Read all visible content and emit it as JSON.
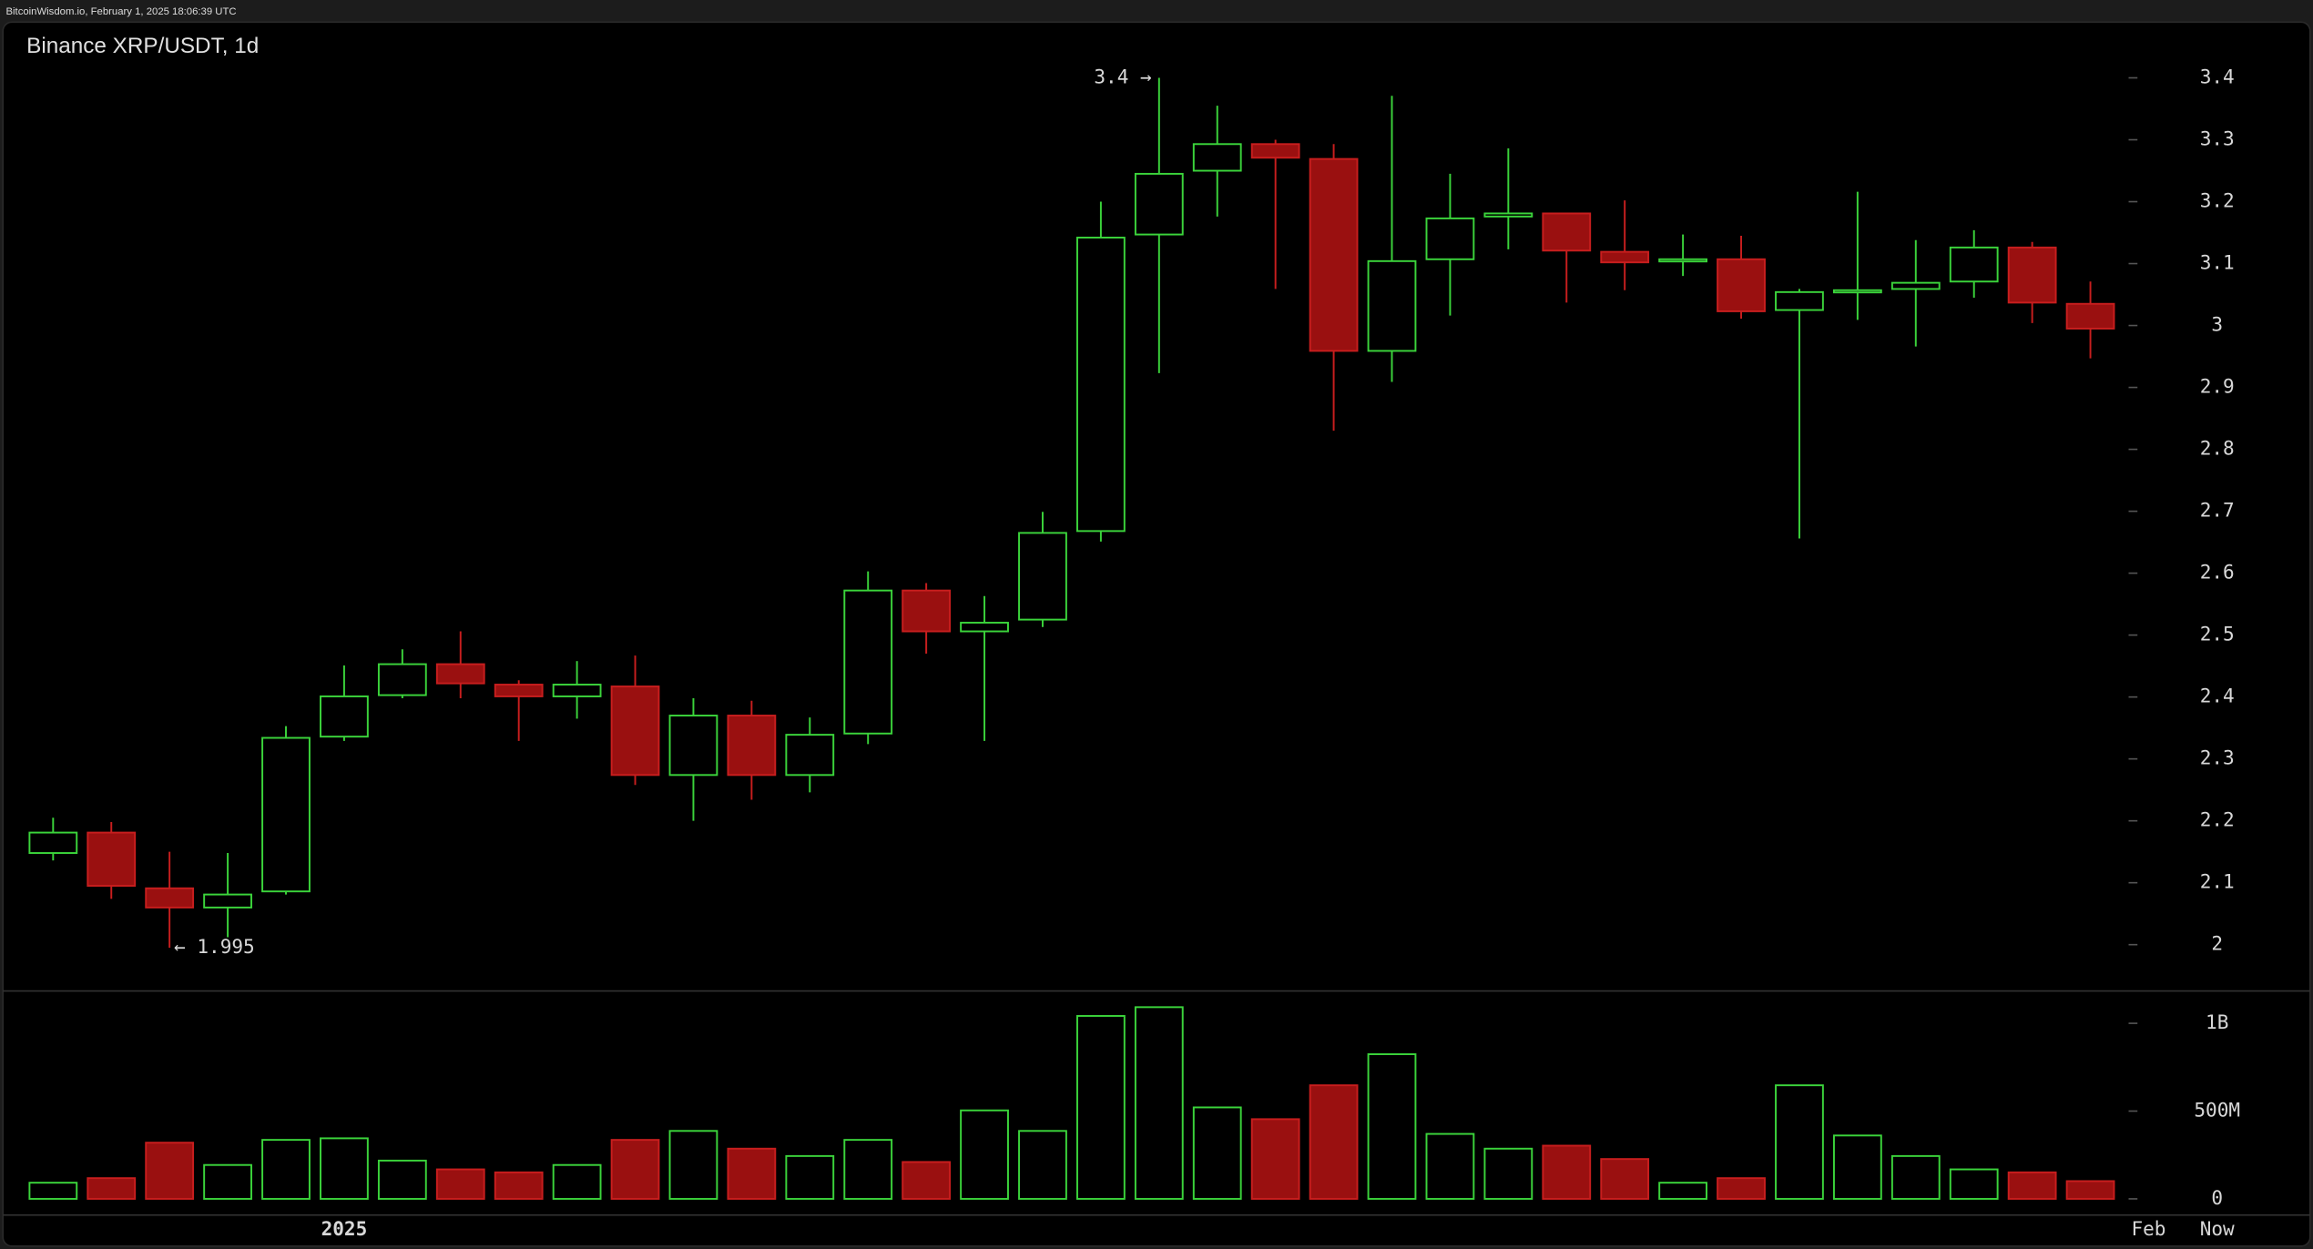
{
  "header": "BitcoinWisdom.io, February 1, 2025 18:06:39 UTC",
  "chart_data": {
    "type": "candlestick",
    "title": "Binance XRP/USDT, 1d",
    "up_color": "#3bd43b",
    "down_color": "#9a1010",
    "series": {
      "open": [
        2.148,
        2.181,
        2.091,
        2.06,
        2.086,
        2.336,
        2.403,
        2.453,
        2.42,
        2.401,
        2.417,
        2.274,
        2.37,
        2.274,
        2.341,
        2.572,
        2.506,
        2.525,
        2.668,
        3.147,
        3.25,
        3.293,
        3.269,
        2.959,
        3.107,
        3.176,
        3.181,
        3.119,
        3.105,
        3.107,
        3.025,
        3.054,
        3.059,
        3.071,
        3.126,
        3.035
      ],
      "high": [
        2.205,
        2.198,
        2.15,
        2.148,
        2.353,
        2.451,
        2.477,
        2.506,
        2.427,
        2.458,
        2.467,
        2.398,
        2.394,
        2.367,
        2.603,
        2.584,
        2.563,
        2.699,
        3.2,
        3.4,
        3.355,
        3.3,
        3.293,
        3.371,
        3.245,
        3.286,
        3.181,
        3.202,
        3.147,
        3.145,
        3.059,
        3.216,
        3.138,
        3.154,
        3.135,
        3.071
      ],
      "low": [
        2.136,
        2.074,
        1.995,
        2.012,
        2.081,
        2.329,
        2.398,
        2.398,
        2.329,
        2.365,
        2.258,
        2.2,
        2.234,
        2.246,
        2.324,
        2.47,
        2.329,
        2.513,
        2.651,
        2.923,
        3.176,
        3.059,
        2.83,
        2.909,
        3.016,
        3.123,
        3.037,
        3.057,
        3.08,
        3.011,
        2.656,
        3.009,
        2.966,
        3.045,
        3.004,
        2.947
      ],
      "close": [
        2.181,
        2.095,
        2.06,
        2.081,
        2.334,
        2.401,
        2.453,
        2.422,
        2.401,
        2.42,
        2.274,
        2.37,
        2.274,
        2.339,
        2.572,
        2.506,
        2.52,
        2.665,
        3.142,
        3.245,
        3.293,
        3.271,
        2.959,
        3.104,
        3.173,
        3.181,
        3.121,
        3.102,
        3.107,
        3.023,
        3.054,
        3.057,
        3.069,
        3.126,
        3.037,
        2.995
      ],
      "volume": [
        92000000,
        118000000,
        320000000,
        193000000,
        336000000,
        345000000,
        218000000,
        168000000,
        151000000,
        193000000,
        336000000,
        387000000,
        286000000,
        244000000,
        336000000,
        210000000,
        504000000,
        387000000,
        1042000000,
        1092000000,
        521000000,
        454000000,
        647000000,
        824000000,
        370000000,
        286000000,
        303000000,
        227000000,
        92000000,
        118000000,
        647000000,
        361000000,
        244000000,
        168000000,
        151000000,
        101000000
      ]
    },
    "ylim": [
      1.93,
      3.49
    ],
    "yticks": [
      2,
      2.1,
      2.2,
      2.3,
      2.4,
      2.5,
      2.6,
      2.7,
      2.8,
      2.9,
      3,
      3.1,
      3.2,
      3.3,
      3.4
    ],
    "volume_lim": [
      -84000000,
      1176000000
    ],
    "volume_ticks": [
      0,
      {
        "value": 500000000,
        "label": "500M"
      },
      {
        "value": 1000000000,
        "label": "1B"
      }
    ],
    "xticks": [
      {
        "value": 5,
        "label": "2025"
      },
      {
        "value": 36,
        "label": "Feb"
      }
    ],
    "now_label": "Now",
    "annotations": [
      "3.4 →",
      "← 1.995"
    ]
  }
}
